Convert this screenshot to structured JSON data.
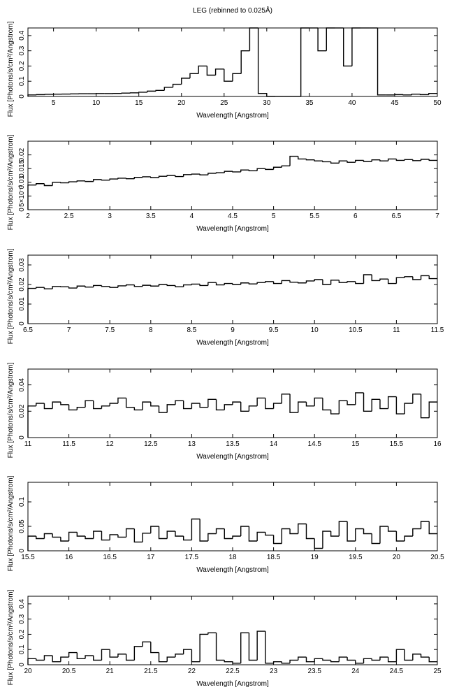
{
  "chart_data": [
    {
      "type": "step",
      "title": "LEG (rebinned to 0.025Å)",
      "xlabel": "Wavelength [Angstrom]",
      "ylabel": "Flux [Photons/s/cm²/Angstrom]",
      "xlim": [
        2,
        50
      ],
      "xticks": [
        5,
        10,
        15,
        20,
        25,
        30,
        35,
        40,
        45,
        50
      ],
      "ylim": [
        0,
        0.45
      ],
      "yticks": [
        0,
        0.1,
        0.2,
        0.3,
        0.4
      ],
      "color": "#000000",
      "x": [
        2.5,
        3.5,
        4.5,
        5.5,
        6.5,
        7.5,
        8.5,
        9.5,
        10.5,
        11.5,
        12.5,
        13.5,
        14.5,
        15.5,
        16.5,
        17.5,
        18.5,
        19.5,
        20.5,
        21.5,
        22.5,
        23.5,
        24.5,
        25.5,
        26.5,
        27.5,
        28.5,
        29.5,
        30.5,
        31.5,
        32.5,
        33.5,
        34.5,
        35.5,
        36.5,
        37.5,
        38.5,
        39.5,
        40.5,
        41.5,
        42.5,
        43.5,
        44.5,
        45.5,
        46.5,
        47.5,
        48.5,
        49.5
      ],
      "values": [
        0.01,
        0.012,
        0.014,
        0.015,
        0.016,
        0.017,
        0.018,
        0.018,
        0.019,
        0.019,
        0.02,
        0.022,
        0.024,
        0.028,
        0.035,
        0.04,
        0.06,
        0.08,
        0.12,
        0.15,
        0.2,
        0.14,
        0.18,
        0.1,
        0.15,
        0.3,
        0.45,
        0.02,
        0,
        0,
        0,
        0,
        0.45,
        0.45,
        0.3,
        0.45,
        0.45,
        0.2,
        0.45,
        0.45,
        0.45,
        0.01,
        0.01,
        0.012,
        0.01,
        0.015,
        0.012,
        0.02
      ]
    },
    {
      "type": "step",
      "xlabel": "Wavelength [Angstrom]",
      "ylabel": "Flux [Photons/s/cm²/Angstrom]",
      "xlim": [
        2,
        7
      ],
      "xticks": [
        2,
        2.5,
        3,
        3.5,
        4,
        4.5,
        5,
        5.5,
        6,
        6.5,
        7
      ],
      "ylim": [
        0,
        0.025
      ],
      "yticks": [
        0,
        {
          "value": 0.005,
          "label": "5×10⁻³"
        },
        0.01,
        0.015,
        0.02
      ],
      "color": "#000000",
      "x": [
        2.05,
        2.15,
        2.25,
        2.35,
        2.45,
        2.55,
        2.65,
        2.75,
        2.85,
        2.95,
        3.05,
        3.15,
        3.25,
        3.35,
        3.45,
        3.55,
        3.65,
        3.75,
        3.85,
        3.95,
        4.05,
        4.15,
        4.25,
        4.35,
        4.45,
        4.55,
        4.65,
        4.75,
        4.85,
        4.95,
        5.05,
        5.15,
        5.25,
        5.35,
        5.45,
        5.55,
        5.65,
        5.75,
        5.85,
        5.95,
        6.05,
        6.15,
        6.25,
        6.35,
        6.45,
        6.55,
        6.65,
        6.75,
        6.85,
        6.95
      ],
      "values": [
        0.009,
        0.0095,
        0.0088,
        0.01,
        0.0098,
        0.0102,
        0.0105,
        0.0103,
        0.011,
        0.0108,
        0.0112,
        0.0115,
        0.0113,
        0.0118,
        0.012,
        0.0117,
        0.0122,
        0.0125,
        0.0121,
        0.0128,
        0.013,
        0.0127,
        0.0133,
        0.0135,
        0.014,
        0.0138,
        0.0145,
        0.0142,
        0.015,
        0.0147,
        0.0155,
        0.016,
        0.0195,
        0.0185,
        0.0182,
        0.0178,
        0.0175,
        0.017,
        0.0178,
        0.0173,
        0.018,
        0.0176,
        0.0182,
        0.0178,
        0.0185,
        0.018,
        0.0183,
        0.0179,
        0.0184,
        0.018
      ]
    },
    {
      "type": "step",
      "xlabel": "Wavelength [Angstrom]",
      "ylabel": "Flux [Photons/s/cm²/Angstrom]",
      "xlim": [
        6.5,
        11.5
      ],
      "xticks": [
        6.5,
        7,
        7.5,
        8,
        8.5,
        9,
        9.5,
        10,
        10.5,
        11,
        11.5
      ],
      "ylim": [
        0,
        0.035
      ],
      "yticks": [
        0,
        0.01,
        0.02,
        0.03
      ],
      "color": "#000000",
      "x": [
        6.55,
        6.65,
        6.75,
        6.85,
        6.95,
        7.05,
        7.15,
        7.25,
        7.35,
        7.45,
        7.55,
        7.65,
        7.75,
        7.85,
        7.95,
        8.05,
        8.15,
        8.25,
        8.35,
        8.45,
        8.55,
        8.65,
        8.75,
        8.85,
        8.95,
        9.05,
        9.15,
        9.25,
        9.35,
        9.45,
        9.55,
        9.65,
        9.75,
        9.85,
        9.95,
        10.05,
        10.15,
        10.25,
        10.35,
        10.45,
        10.55,
        10.65,
        10.75,
        10.85,
        10.95,
        11.05,
        11.15,
        11.25,
        11.35,
        11.45
      ],
      "values": [
        0.018,
        0.0185,
        0.0178,
        0.019,
        0.0188,
        0.0182,
        0.0192,
        0.0187,
        0.0195,
        0.019,
        0.0185,
        0.0193,
        0.0198,
        0.019,
        0.0196,
        0.0192,
        0.02,
        0.0195,
        0.0188,
        0.0198,
        0.0202,
        0.0195,
        0.021,
        0.0198,
        0.0205,
        0.02,
        0.0208,
        0.0203,
        0.021,
        0.0215,
        0.0205,
        0.022,
        0.0212,
        0.0208,
        0.0218,
        0.0225,
        0.02,
        0.0222,
        0.021,
        0.0215,
        0.0205,
        0.025,
        0.022,
        0.0228,
        0.0205,
        0.0235,
        0.024,
        0.0225,
        0.0245,
        0.023
      ]
    },
    {
      "type": "step",
      "xlabel": "Wavelength [Angstrom]",
      "ylabel": "Flux [Photons/s/cm²/Angstrom]",
      "xlim": [
        11,
        16
      ],
      "xticks": [
        11,
        11.5,
        12,
        12.5,
        13,
        13.5,
        14,
        14.5,
        15,
        15.5,
        16
      ],
      "ylim": [
        0,
        0.052
      ],
      "yticks": [
        0,
        0.02,
        0.04
      ],
      "color": "#000000",
      "x": [
        11.05,
        11.15,
        11.25,
        11.35,
        11.45,
        11.55,
        11.65,
        11.75,
        11.85,
        11.95,
        12.05,
        12.15,
        12.25,
        12.35,
        12.45,
        12.55,
        12.65,
        12.75,
        12.85,
        12.95,
        13.05,
        13.15,
        13.25,
        13.35,
        13.45,
        13.55,
        13.65,
        13.75,
        13.85,
        13.95,
        14.05,
        14.15,
        14.25,
        14.35,
        14.45,
        14.55,
        14.65,
        14.75,
        14.85,
        14.95,
        15.05,
        15.15,
        15.25,
        15.35,
        15.45,
        15.55,
        15.65,
        15.75,
        15.85,
        15.95
      ],
      "values": [
        0.024,
        0.026,
        0.022,
        0.027,
        0.025,
        0.021,
        0.023,
        0.028,
        0.022,
        0.024,
        0.026,
        0.03,
        0.023,
        0.021,
        0.027,
        0.024,
        0.019,
        0.025,
        0.028,
        0.022,
        0.026,
        0.023,
        0.029,
        0.021,
        0.025,
        0.027,
        0.02,
        0.024,
        0.03,
        0.022,
        0.026,
        0.033,
        0.019,
        0.027,
        0.024,
        0.03,
        0.021,
        0.018,
        0.028,
        0.025,
        0.034,
        0.02,
        0.029,
        0.022,
        0.031,
        0.018,
        0.026,
        0.033,
        0.015,
        0.027
      ]
    },
    {
      "type": "step",
      "xlabel": "Wavelength [Angstrom]",
      "ylabel": "Flux [Photons/s/cm²/Angstrom]",
      "xlim": [
        15.5,
        20.5
      ],
      "xticks": [
        15.5,
        16,
        16.5,
        17,
        17.5,
        18,
        18.5,
        19,
        19.5,
        20,
        20.5
      ],
      "ylim": [
        0,
        0.14
      ],
      "yticks": [
        0,
        0.05,
        0.1
      ],
      "color": "#000000",
      "x": [
        15.55,
        15.65,
        15.75,
        15.85,
        15.95,
        16.05,
        16.15,
        16.25,
        16.35,
        16.45,
        16.55,
        16.65,
        16.75,
        16.85,
        16.95,
        17.05,
        17.15,
        17.25,
        17.35,
        17.45,
        17.55,
        17.65,
        17.75,
        17.85,
        17.95,
        18.05,
        18.15,
        18.25,
        18.35,
        18.45,
        18.55,
        18.65,
        18.75,
        18.85,
        18.95,
        19.05,
        19.15,
        19.25,
        19.35,
        19.45,
        19.55,
        19.65,
        19.75,
        19.85,
        19.95,
        20.05,
        20.15,
        20.25,
        20.35,
        20.45
      ],
      "values": [
        0.03,
        0.025,
        0.035,
        0.028,
        0.02,
        0.038,
        0.03,
        0.025,
        0.04,
        0.022,
        0.033,
        0.028,
        0.045,
        0.018,
        0.036,
        0.05,
        0.025,
        0.04,
        0.03,
        0.022,
        0.065,
        0.02,
        0.035,
        0.045,
        0.025,
        0.03,
        0.05,
        0.02,
        0.038,
        0.032,
        0.015,
        0.045,
        0.035,
        0.055,
        0.025,
        0.005,
        0.04,
        0.03,
        0.06,
        0.02,
        0.045,
        0.035,
        0.015,
        0.05,
        0.04,
        0.02,
        0.03,
        0.045,
        0.06,
        0.035
      ]
    },
    {
      "type": "step",
      "xlabel": "Wavelength [Angstrom]",
      "ylabel": "Flux [Photons/s/cm²/Angstrom]",
      "xlim": [
        20,
        25
      ],
      "xticks": [
        20,
        20.5,
        21,
        21.5,
        22,
        22.5,
        23,
        23.5,
        24,
        24.5,
        25
      ],
      "ylim": [
        0,
        0.45
      ],
      "yticks": [
        0,
        0.1,
        0.2,
        0.3,
        0.4
      ],
      "color": "#000000",
      "x": [
        20.05,
        20.15,
        20.25,
        20.35,
        20.45,
        20.55,
        20.65,
        20.75,
        20.85,
        20.95,
        21.05,
        21.15,
        21.25,
        21.35,
        21.45,
        21.55,
        21.65,
        21.75,
        21.85,
        21.95,
        22.05,
        22.15,
        22.25,
        22.35,
        22.45,
        22.55,
        22.65,
        22.75,
        22.85,
        22.95,
        23.05,
        23.15,
        23.25,
        23.35,
        23.45,
        23.55,
        23.65,
        23.75,
        23.85,
        23.95,
        24.05,
        24.15,
        24.25,
        24.35,
        24.45,
        24.55,
        24.65,
        24.75,
        24.85,
        24.95
      ],
      "values": [
        0.04,
        0.03,
        0.06,
        0.02,
        0.05,
        0.08,
        0.04,
        0.06,
        0.03,
        0.1,
        0.05,
        0.07,
        0.03,
        0.12,
        0.15,
        0.08,
        0.02,
        0.05,
        0.07,
        0.1,
        0.02,
        0.2,
        0.21,
        0.03,
        0.02,
        0.01,
        0.21,
        0.03,
        0.22,
        0.01,
        0.02,
        0.01,
        0.03,
        0.05,
        0.02,
        0.04,
        0.03,
        0.02,
        0.05,
        0.03,
        0.01,
        0.04,
        0.03,
        0.05,
        0.02,
        0.1,
        0.03,
        0.07,
        0.05,
        0.02
      ]
    }
  ]
}
